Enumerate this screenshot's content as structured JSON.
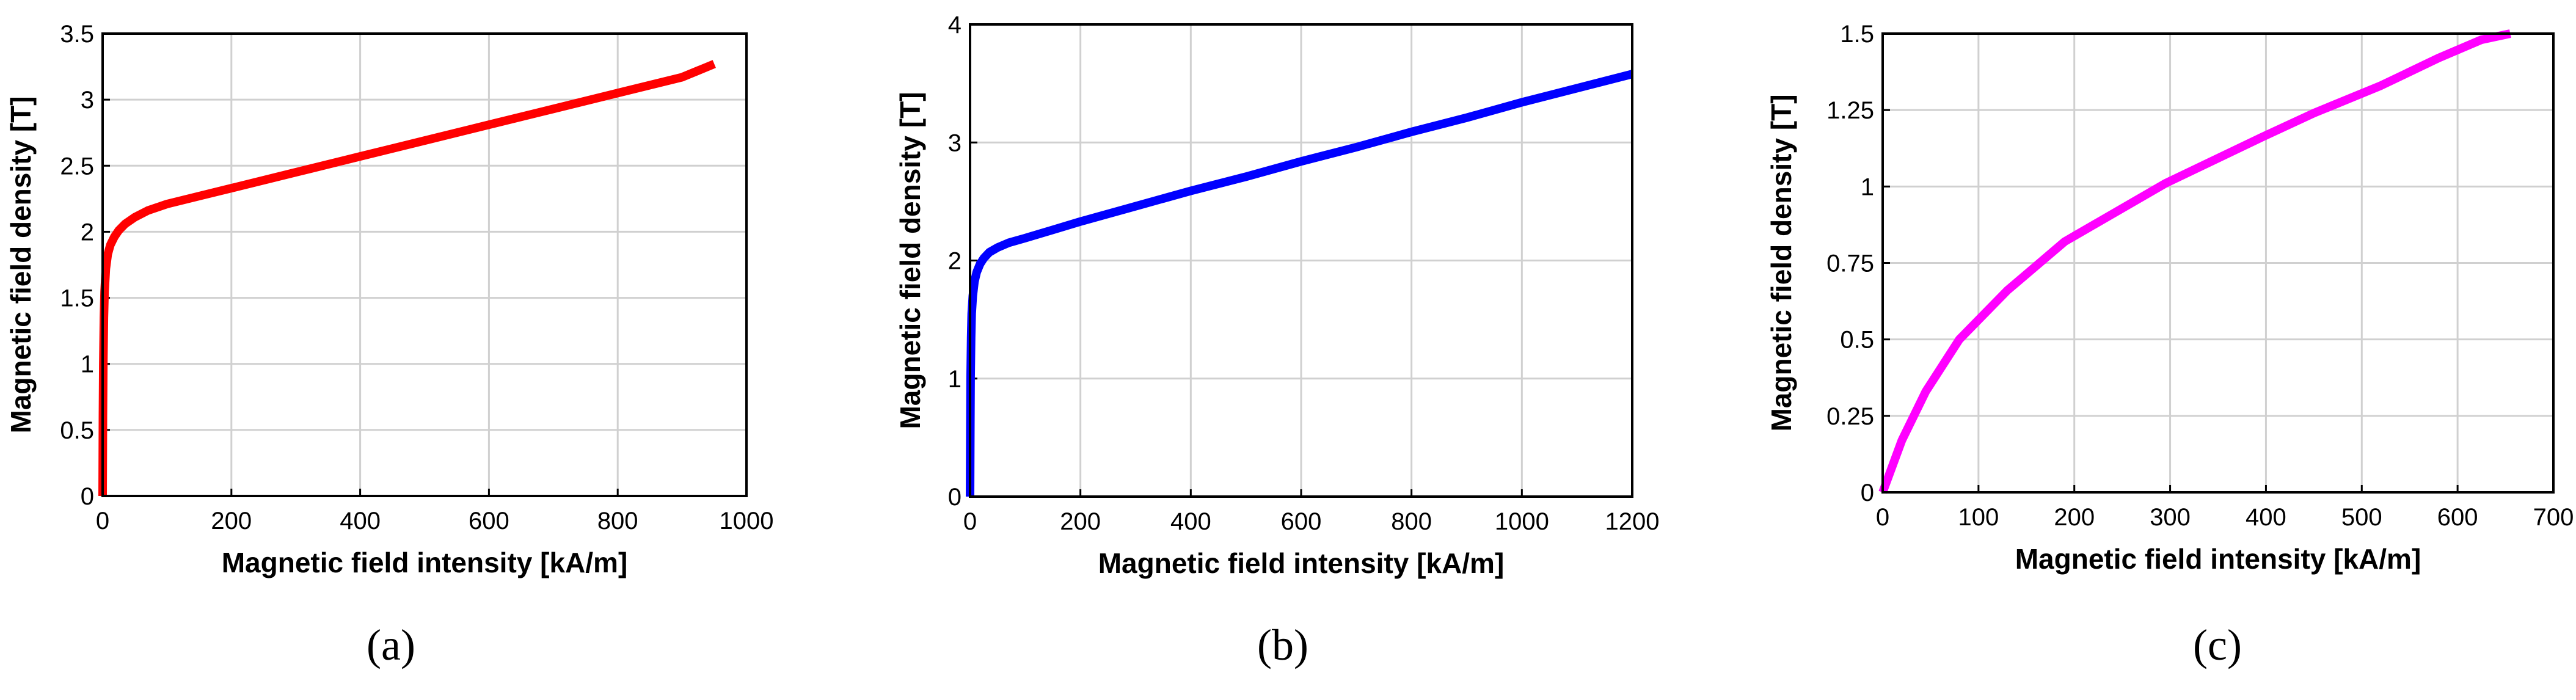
{
  "chart_data": [
    {
      "type": "line",
      "panel_label": "(a)",
      "xlabel": "Magnetic field intensity [kA/m]",
      "ylabel": "Magnetic field density [T]",
      "xlim": [
        0,
        1000
      ],
      "ylim": [
        0,
        3.5
      ],
      "xticks": [
        "0",
        "200",
        "400",
        "600",
        "800",
        "1000"
      ],
      "yticks": [
        "0",
        "0.5",
        "1",
        "1.5",
        "2",
        "2.5",
        "3",
        "3.5"
      ],
      "grid": true,
      "series": [
        {
          "color": "#ff0000",
          "x": [
            0,
            0.5,
            1,
            2,
            3,
            5,
            8,
            12,
            18,
            25,
            35,
            50,
            70,
            100,
            150,
            200,
            300,
            400,
            500,
            600,
            700,
            800,
            900,
            950
          ],
          "y": [
            0,
            0.6,
            1.0,
            1.35,
            1.55,
            1.72,
            1.83,
            1.9,
            1.96,
            2.01,
            2.06,
            2.11,
            2.16,
            2.21,
            2.27,
            2.33,
            2.45,
            2.57,
            2.69,
            2.81,
            2.93,
            3.05,
            3.17,
            3.27
          ]
        }
      ]
    },
    {
      "type": "line",
      "panel_label": "(b)",
      "xlabel": "Magnetic field intensity [kA/m]",
      "ylabel": "Magnetic field density [T]",
      "xlim": [
        0,
        1200
      ],
      "ylim": [
        0,
        4
      ],
      "xticks": [
        "0",
        "200",
        "400",
        "600",
        "800",
        "1000",
        "1200"
      ],
      "yticks": [
        "0",
        "1",
        "2",
        "3",
        "4"
      ],
      "grid": true,
      "series": [
        {
          "color": "#0000ff",
          "x": [
            0,
            0.5,
            1,
            2,
            3,
            5,
            8,
            12,
            18,
            25,
            35,
            50,
            70,
            100,
            150,
            200,
            300,
            400,
            500,
            600,
            700,
            800,
            900,
            1000,
            1100,
            1200
          ],
          "y": [
            0,
            0.6,
            1.0,
            1.35,
            1.55,
            1.7,
            1.82,
            1.9,
            1.97,
            2.02,
            2.07,
            2.11,
            2.15,
            2.19,
            2.26,
            2.33,
            2.46,
            2.59,
            2.71,
            2.84,
            2.96,
            3.09,
            3.21,
            3.34,
            3.46,
            3.58
          ]
        }
      ]
    },
    {
      "type": "line",
      "panel_label": "(c)",
      "xlabel": "Magnetic field intensity [kA/m]",
      "ylabel": "Magnetic field density [T]",
      "xlim": [
        0,
        700
      ],
      "ylim": [
        0,
        1.5
      ],
      "xticks": [
        "0",
        "100",
        "200",
        "300",
        "400",
        "500",
        "600",
        "700"
      ],
      "yticks": [
        "0",
        "0.25",
        "0.5",
        "0.75",
        "1",
        "1.25",
        "1.5"
      ],
      "grid": true,
      "series": [
        {
          "color": "#ff00ff",
          "x": [
            0,
            20,
            45,
            80,
            130,
            190,
            295,
            395,
            450,
            520,
            580,
            625,
            655
          ],
          "y": [
            0,
            0.17,
            0.33,
            0.5,
            0.66,
            0.82,
            1.01,
            1.16,
            1.24,
            1.33,
            1.42,
            1.48,
            1.5
          ]
        }
      ]
    }
  ]
}
